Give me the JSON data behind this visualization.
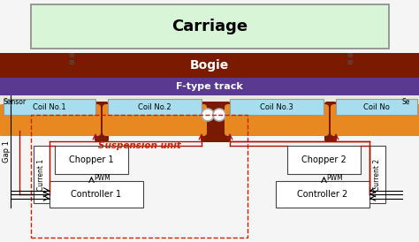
{
  "carriage_color": "#d8f5d8",
  "bogie_color": "#7a1a00",
  "track_color": "#5a3a90",
  "sensor_bg_color": "#e8e8e0",
  "coil_bg_color": "#a8ddf0",
  "coil_orange_color": "#e88820",
  "suspension_dash_color": "#cc2200",
  "arrow_color": "#aa1100",
  "box_edge_color": "#444444",
  "title_carriage": "Carriage",
  "title_bogie": "Bogie",
  "title_track": "F-type track",
  "label_sensor_l": "Sensor",
  "label_sensor_r": "Se",
  "label_gap": "Gap 1",
  "label_current1": "Current 1",
  "label_current2": "Current 2",
  "label_chopper1": "Chopper 1",
  "label_chopper2": "Chopper 2",
  "label_pwm": "PWM",
  "label_controller1": "Controller 1",
  "label_controller2": "Controller 2",
  "label_suspension": "Suspension unit",
  "coil_labels": [
    "Coil No.1",
    "Coil No.2",
    "Coil No.3",
    "Coil No"
  ],
  "background_color": "#f5f5f5",
  "fig_width": 4.74,
  "fig_height": 2.74,
  "dpi": 100
}
